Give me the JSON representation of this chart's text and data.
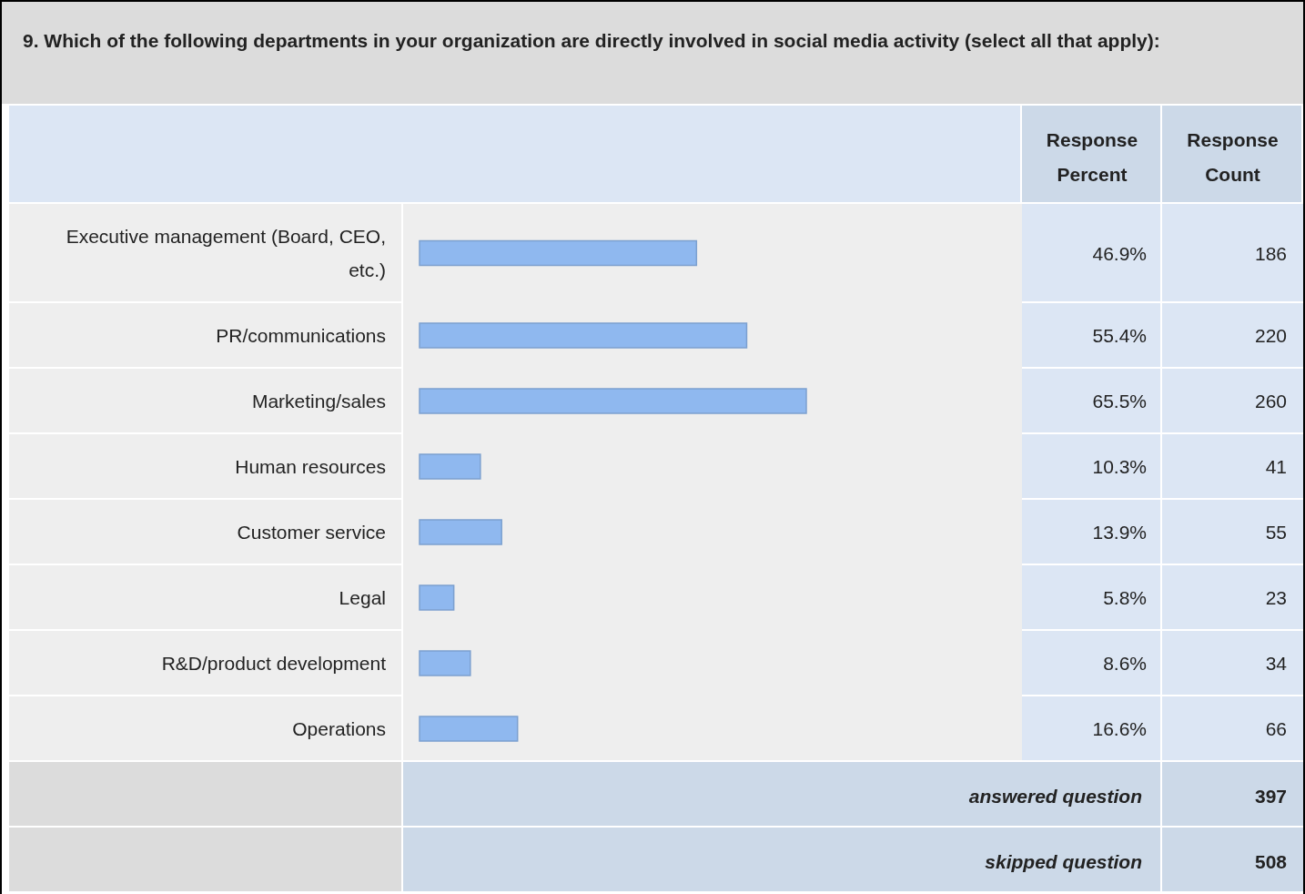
{
  "chart_data": {
    "type": "bar",
    "orientation": "horizontal",
    "title": "9. Which of the following departments in your organization are directly involved in social media activity (select all that apply):",
    "categories": [
      "Executive management (Board, CEO, etc.)",
      "PR/communications",
      "Marketing/sales",
      "Human resources",
      "Customer service",
      "Legal",
      "R&D/product development",
      "Operations"
    ],
    "values": [
      46.9,
      55.4,
      65.5,
      10.3,
      13.9,
      5.8,
      8.6,
      16.6
    ],
    "value_labels": [
      "46.9%",
      "55.4%",
      "65.5%",
      "10.3%",
      "13.9%",
      "5.8%",
      "8.6%",
      "16.6%"
    ],
    "color": "#8fb8ef",
    "annotations": [
      "Response Percent",
      "Response Count",
      "186",
      "220",
      "260",
      "41",
      "55",
      "23",
      "34",
      "66",
      "answered question",
      "397",
      "skipped question",
      "508"
    ]
  }
}
